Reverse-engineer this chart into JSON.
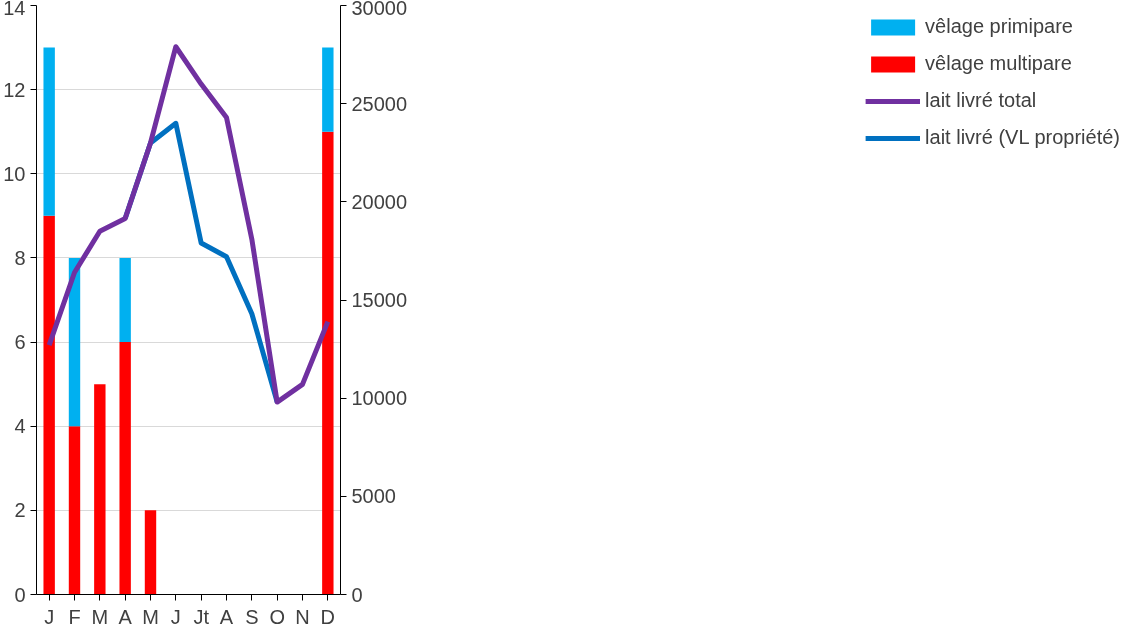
{
  "chart_data": {
    "type": "bar",
    "stacked": true,
    "categories": [
      "J",
      "F",
      "M",
      "A",
      "M",
      "J",
      "Jt",
      "A",
      "S",
      "O",
      "N",
      "D"
    ],
    "series": [
      {
        "name": "vêlage multipare",
        "color": "#ff0000",
        "values": [
          9,
          4,
          5,
          6,
          2,
          null,
          null,
          null,
          null,
          null,
          null,
          11
        ]
      },
      {
        "name": "vêlage primipare",
        "color": "#00b0f0",
        "values": [
          4,
          4,
          null,
          2,
          null,
          null,
          null,
          null,
          null,
          null,
          null,
          2
        ]
      },
      {
        "name": "lait livré (VL propriété)",
        "type": "line",
        "axis": "y2",
        "color": "#0070c0",
        "values": [
          null,
          null,
          null,
          19150,
          23000,
          24000,
          17900,
          17200,
          14300,
          9800,
          null,
          null
        ]
      },
      {
        "name": "lait livré total",
        "type": "line",
        "axis": "y2",
        "color": "#7030a0",
        "values": [
          12700,
          16400,
          18500,
          19150,
          23000,
          27900,
          26000,
          24300,
          18100,
          9800,
          10700,
          13900
        ]
      }
    ],
    "ylim": [
      0,
      14
    ],
    "yticks": [
      0,
      2,
      4,
      6,
      8,
      10,
      12,
      14
    ],
    "y2lim": [
      0,
      30000
    ],
    "y2ticks": [
      0,
      5000,
      10000,
      15000,
      20000,
      25000,
      30000
    ],
    "grid": "y",
    "legend": "right",
    "line_style": "solid",
    "marker": "none"
  }
}
